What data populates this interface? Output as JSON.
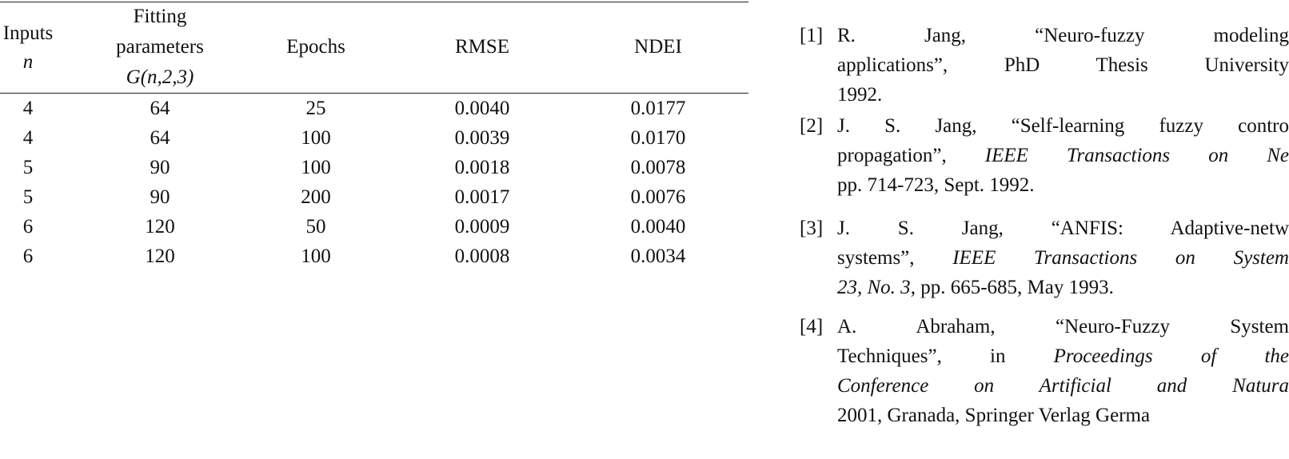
{
  "table": {
    "header": [
      [
        "Inputs",
        "n"
      ],
      [
        "Fitting",
        "parameters",
        "G(n,2,3)"
      ],
      [
        "Epochs"
      ],
      [
        "RMSE"
      ],
      [
        "NDEI"
      ]
    ],
    "rows": [
      [
        "4",
        "64",
        "25",
        "0.0040",
        "0.0177"
      ],
      [
        "4",
        "64",
        "100",
        "0.0039",
        "0.0170"
      ],
      [
        "5",
        "90",
        "100",
        "0.0018",
        "0.0078"
      ],
      [
        "5",
        "90",
        "200",
        "0.0017",
        "0.0076"
      ],
      [
        "6",
        "120",
        "50",
        "0.0009",
        "0.0040"
      ],
      [
        "6",
        "120",
        "100",
        "0.0008",
        "0.0034"
      ]
    ]
  },
  "references": [
    {
      "label": "[1]",
      "lines": [
        [
          {
            "text": "R.  Jang,  “Neuro-fuzzy  modeling"
          }
        ],
        [
          {
            "text": "applications”, PhD Thesis University"
          }
        ],
        [
          {
            "text": "1992."
          }
        ]
      ]
    },
    {
      "label": "[2]",
      "lines": [
        [
          {
            "text": "J. S. Jang, “Self-learning fuzzy contro"
          }
        ],
        [
          {
            "text": "propagation”, "
          },
          {
            "text": "IEEE Transactions on Ne",
            "italic": true
          }
        ],
        [
          {
            "text": "pp. 714-723, Sept. 1992."
          }
        ]
      ]
    },
    {
      "label": "[3]",
      "lines": [
        [
          {
            "text": "J.  S.  Jang,  “ANFIS:  Adaptive-netw"
          }
        ],
        [
          {
            "text": "systems”, "
          },
          {
            "text": "IEEE Transactions on System",
            "italic": true
          }
        ],
        [
          {
            "text": "23, No. 3",
            "italic": true
          },
          {
            "text": ", pp. 665-685, May 1993."
          }
        ]
      ]
    },
    {
      "label": "[4]",
      "lines": [
        [
          {
            "text": "A.  Abraham,  “Neuro-Fuzzy  System"
          }
        ],
        [
          {
            "text": "Techniques”,  in  "
          },
          {
            "text": "Proceedings  of  the",
            "italic": true
          }
        ],
        [
          {
            "text": "Conference  on  Artificial  and  Natura",
            "italic": true
          }
        ],
        [
          {
            "text": "2001, Granada, Springer Verlag Germa"
          }
        ]
      ]
    }
  ]
}
